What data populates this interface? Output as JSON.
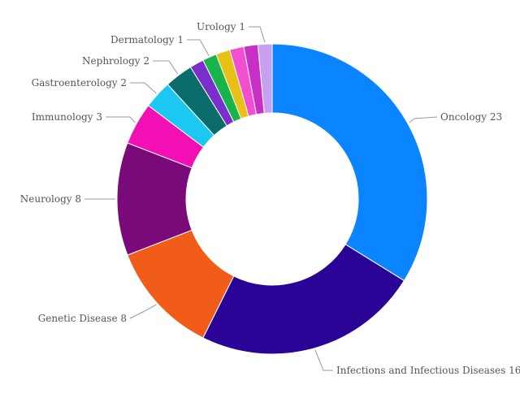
{
  "chart_data": {
    "type": "pie",
    "donut": true,
    "title": "",
    "slices": [
      {
        "name": "Oncology",
        "value": 23,
        "color": "#0A84FF",
        "label": "Oncology 23"
      },
      {
        "name": "Infections and Infectious Diseases",
        "value": 16,
        "color": "#2A0496",
        "label": "Infections and Infectious Diseases 16"
      },
      {
        "name": "Genetic Disease",
        "value": 8,
        "color": "#F25C19",
        "label": "Genetic Disease 8"
      },
      {
        "name": "Neurology",
        "value": 8,
        "color": "#7A0A7A",
        "label": "Neurology 8"
      },
      {
        "name": "Immunology",
        "value": 3,
        "color": "#F20FB4",
        "label": "Immunology 3"
      },
      {
        "name": "Gastroenterology",
        "value": 2,
        "color": "#1CC8F2",
        "label": "Gastroenterology 2"
      },
      {
        "name": "Nephrology",
        "value": 2,
        "color": "#0B6C6C",
        "label": "Nephrology 2"
      },
      {
        "name": "",
        "value": 1,
        "color": "#7A2FCC",
        "label": ""
      },
      {
        "name": "Dermatology",
        "value": 1,
        "color": "#16B54A",
        "label": "Dermatology 1"
      },
      {
        "name": "",
        "value": 1,
        "color": "#E8C016",
        "label": ""
      },
      {
        "name": "",
        "value": 1,
        "color": "#F24FD0",
        "label": ""
      },
      {
        "name": "",
        "value": 1,
        "color": "#C72FC7",
        "label": ""
      },
      {
        "name": "Urology",
        "value": 1,
        "color": "#C7A0F2",
        "label": "Urology 1"
      }
    ]
  }
}
